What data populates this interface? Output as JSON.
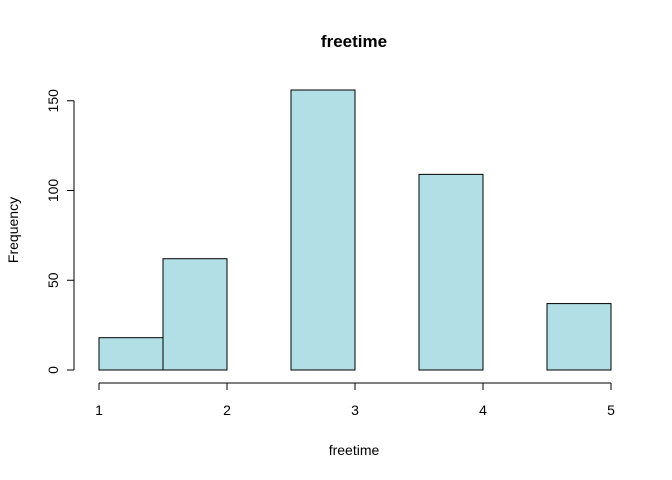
{
  "chart_data": {
    "type": "bar",
    "title": "freetime",
    "xlabel": "freetime",
    "ylabel": "Frequency",
    "bins": [
      {
        "start": 1.0,
        "end": 1.5,
        "count": 18
      },
      {
        "start": 1.5,
        "end": 2.0,
        "count": 62
      },
      {
        "start": 2.0,
        "end": 2.5,
        "count": 0
      },
      {
        "start": 2.5,
        "end": 3.0,
        "count": 156
      },
      {
        "start": 3.0,
        "end": 3.5,
        "count": 0
      },
      {
        "start": 3.5,
        "end": 4.0,
        "count": 109
      },
      {
        "start": 4.0,
        "end": 4.5,
        "count": 0
      },
      {
        "start": 4.5,
        "end": 5.0,
        "count": 37
      }
    ],
    "xlim": [
      1,
      5
    ],
    "ylim": [
      0,
      156
    ],
    "x_ticks": [
      {
        "value": 1,
        "label": "1"
      },
      {
        "value": 2,
        "label": "2"
      },
      {
        "value": 3,
        "label": "3"
      },
      {
        "value": 4,
        "label": "4"
      },
      {
        "value": 5,
        "label": "5"
      }
    ],
    "y_ticks": [
      {
        "value": 0,
        "label": "0"
      },
      {
        "value": 50,
        "label": "50"
      },
      {
        "value": 100,
        "label": "100"
      },
      {
        "value": 150,
        "label": "150"
      }
    ],
    "bar_color": "#b2dfe5",
    "border_color": "#000000",
    "grid": false,
    "legend": "none"
  }
}
